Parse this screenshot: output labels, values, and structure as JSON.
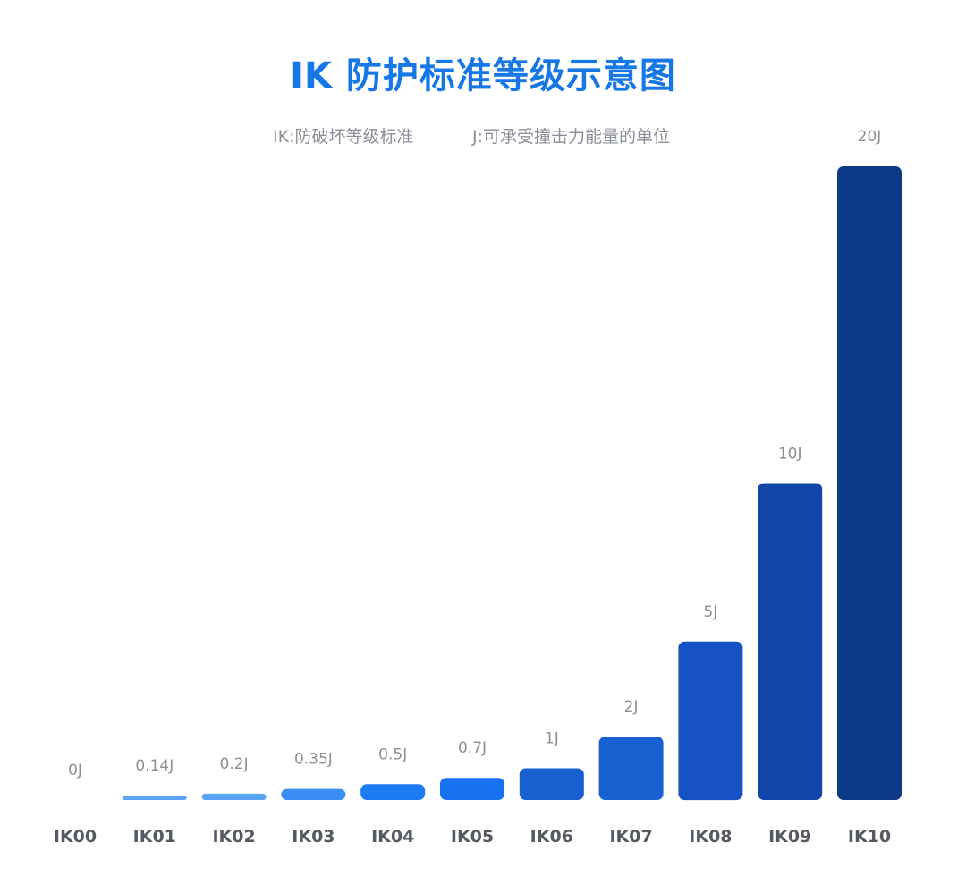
{
  "chart_data": {
    "type": "bar",
    "title": "IK 防护标准等级示意图",
    "notes": [
      "IK:防破坏等级标准",
      "J:可承受撞击力能量的单位"
    ],
    "categories": [
      "IK00",
      "IK01",
      "IK02",
      "IK03",
      "IK04",
      "IK05",
      "IK06",
      "IK07",
      "IK08",
      "IK09",
      "IK10"
    ],
    "values": [
      0,
      0.14,
      0.2,
      0.35,
      0.5,
      0.7,
      1,
      2,
      5,
      10,
      20
    ],
    "value_labels": [
      "0J",
      "0.14J",
      "0.2J",
      "0.35J",
      "0.5J",
      "0.7J",
      "1J",
      "2J",
      "5J",
      "10J",
      "20J"
    ],
    "xlabel": "",
    "ylabel": "",
    "grid": false,
    "colors": [
      "#5aa3f5",
      "#5aa3f5",
      "#5aa3f5",
      "#3b8ef3",
      "#1d7cf2",
      "#1672f0",
      "#1a5fd0",
      "#1a5fd0",
      "#1553c4",
      "#0f46a8",
      "#0c3a86"
    ]
  }
}
